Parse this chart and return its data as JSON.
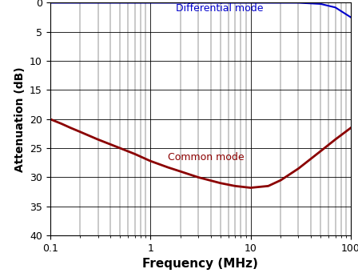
{
  "title": "",
  "xlabel": "Frequency (MHz)",
  "ylabel": "Attenuation (dB)",
  "xlim": [
    0.1,
    100
  ],
  "ylim": [
    40,
    0
  ],
  "yticks": [
    0,
    5,
    10,
    15,
    20,
    25,
    30,
    35,
    40
  ],
  "diff_mode_label": "Differential mode",
  "common_mode_label": "Common mode",
  "diff_color": "#0000cc",
  "common_color": "#8b0000",
  "background_color": "#ffffff",
  "diff_freq": [
    0.1,
    0.2,
    0.5,
    1.0,
    2.0,
    5.0,
    10.0,
    20.0,
    30.0,
    50.0,
    70.0,
    100.0
  ],
  "diff_atten": [
    0.0,
    0.0,
    0.0,
    0.0,
    0.0,
    0.0,
    0.0,
    0.0,
    0.0,
    0.2,
    0.8,
    2.5
  ],
  "common_freq": [
    0.1,
    0.13,
    0.16,
    0.2,
    0.3,
    0.5,
    0.7,
    1.0,
    1.5,
    2.0,
    3.0,
    5.0,
    7.0,
    10.0,
    15.0,
    20.0,
    30.0,
    50.0,
    70.0,
    100.0
  ],
  "common_atten": [
    20.0,
    20.8,
    21.5,
    22.2,
    23.5,
    25.0,
    26.0,
    27.2,
    28.3,
    29.0,
    30.0,
    31.0,
    31.5,
    31.8,
    31.5,
    30.5,
    28.5,
    25.5,
    23.5,
    21.5
  ],
  "xlabel_fontsize": 11,
  "ylabel_fontsize": 10,
  "tick_fontsize": 9,
  "label_fontsize": 9
}
